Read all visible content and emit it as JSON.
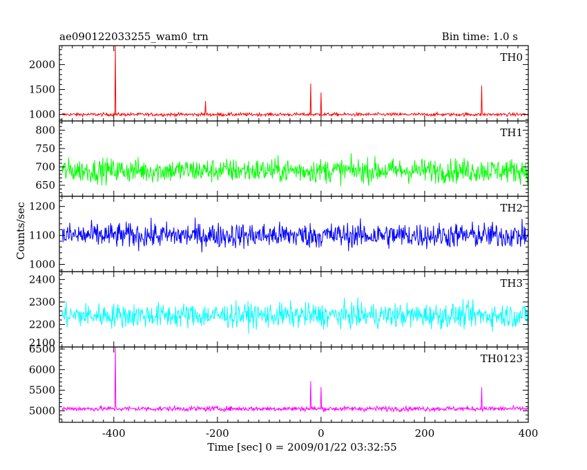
{
  "header": {
    "title_left": "ae090122033255_wam0_trn",
    "title_right": "Bin time: 1.0 s"
  },
  "chart_data": {
    "type": "line",
    "xlabel": "Time [sec] 0 = 2009/01/22 03:32:55",
    "ylabel": "Counts/sec",
    "xlim": [
      -505,
      400
    ],
    "xticks": [
      -400,
      -200,
      0,
      200,
      400
    ],
    "panels": [
      {
        "name": "TH0",
        "color": "#ff0000",
        "ylim": [
          870,
          2380
        ],
        "yticks": [
          1000,
          1500,
          2000
        ],
        "baseline": 1000,
        "noise": 30,
        "spikes": [
          {
            "x": -397,
            "y": 2380
          },
          {
            "x": -223,
            "y": 1270
          },
          {
            "x": -20,
            "y": 1620
          },
          {
            "x": 0,
            "y": 1440
          },
          {
            "x": 310,
            "y": 1580
          }
        ]
      },
      {
        "name": "TH1",
        "color": "#00ff00",
        "ylim": [
          620,
          825
        ],
        "yticks": [
          650,
          700,
          750,
          800
        ],
        "baseline": 690,
        "noise": 30,
        "spikes": []
      },
      {
        "name": "TH2",
        "color": "#0000ff",
        "ylim": [
          975,
          1235
        ],
        "yticks": [
          1000,
          1100,
          1200
        ],
        "baseline": 1100,
        "noise": 40,
        "spikes": []
      },
      {
        "name": "TH3",
        "color": "#00ffff",
        "ylim": [
          2100,
          2435
        ],
        "yticks": [
          2100,
          2200,
          2300,
          2400
        ],
        "baseline": 2240,
        "noise": 50,
        "spikes": []
      },
      {
        "name": "TH0123",
        "color": "#ff00ff",
        "ylim": [
          4720,
          6550
        ],
        "yticks": [
          5000,
          5500,
          6000,
          6500
        ],
        "baseline": 5050,
        "noise": 55,
        "spikes": [
          {
            "x": -397,
            "y": 6550
          },
          {
            "x": -20,
            "y": 5720
          },
          {
            "x": 0,
            "y": 5580
          },
          {
            "x": 310,
            "y": 5570
          }
        ]
      }
    ]
  }
}
